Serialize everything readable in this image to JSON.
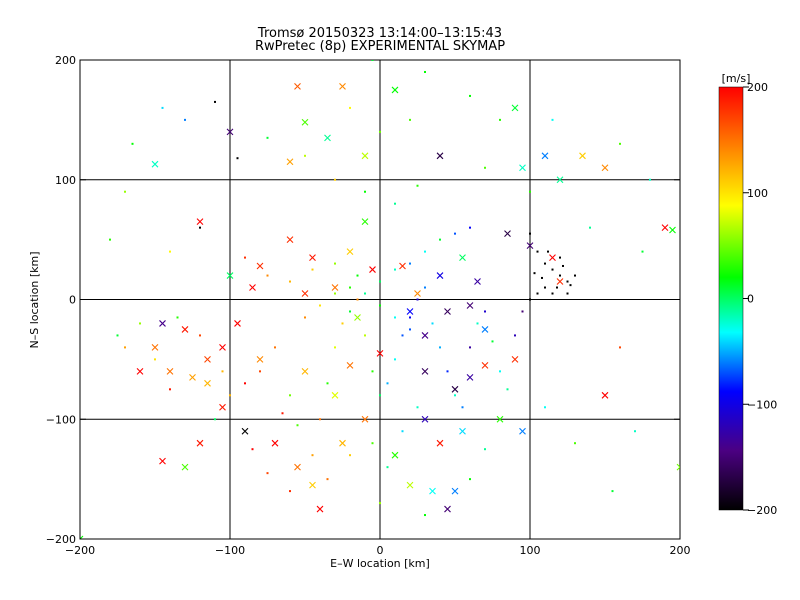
{
  "chart_data": {
    "type": "scatter",
    "title": "Tromsø 20150323 13:14:00–13:15:43",
    "subtitle": "RwPretec (8p) EXPERIMENTAL SKYMAP",
    "xlabel": "E–W location [km]",
    "ylabel": "N–S location [km]",
    "xlim": [
      -200,
      200
    ],
    "ylim": [
      -200,
      200
    ],
    "xticks": [
      -200,
      -100,
      0,
      100,
      200
    ],
    "yticks": [
      -200,
      -100,
      0,
      100,
      200
    ],
    "grid": true,
    "colorbar": {
      "label": "[m/s]",
      "range": [
        -200,
        200
      ],
      "ticks": [
        200,
        100,
        0,
        -100,
        -200
      ],
      "colormap": "rainbow",
      "stops": [
        "#000000",
        "#4b0082",
        "#0000ff",
        "#00ffff",
        "#00ff00",
        "#ffff00",
        "#ff8000",
        "#ff0000"
      ]
    },
    "series": [
      {
        "marker": "cross",
        "points": [
          [
            -60,
            115,
            130
          ],
          [
            -50,
            148,
            40
          ],
          [
            -35,
            135,
            -10
          ],
          [
            -25,
            178,
            140
          ],
          [
            -10,
            120,
            70
          ],
          [
            -150,
            113,
            -20
          ],
          [
            -100,
            140,
            -150
          ],
          [
            10,
            175,
            20
          ],
          [
            40,
            120,
            -170
          ],
          [
            90,
            160,
            10
          ],
          [
            95,
            110,
            -20
          ],
          [
            110,
            120,
            -60
          ],
          [
            120,
            100,
            -10
          ],
          [
            135,
            120,
            110
          ],
          [
            150,
            110,
            140
          ],
          [
            -55,
            178,
            160
          ],
          [
            -120,
            65,
            200
          ],
          [
            -100,
            20,
            0
          ],
          [
            -85,
            10,
            200
          ],
          [
            -80,
            28,
            180
          ],
          [
            -60,
            50,
            180
          ],
          [
            -45,
            35,
            190
          ],
          [
            -30,
            10,
            150
          ],
          [
            -20,
            40,
            110
          ],
          [
            -5,
            25,
            200
          ],
          [
            15,
            28,
            180
          ],
          [
            25,
            5,
            140
          ],
          [
            40,
            20,
            -100
          ],
          [
            55,
            35,
            0
          ],
          [
            65,
            15,
            -130
          ],
          [
            45,
            -10,
            -160
          ],
          [
            85,
            55,
            -170
          ],
          [
            100,
            45,
            -150
          ],
          [
            115,
            35,
            200
          ],
          [
            120,
            15,
            180
          ],
          [
            190,
            60,
            200
          ],
          [
            195,
            58,
            20
          ],
          [
            -145,
            -20,
            -140
          ],
          [
            -150,
            -40,
            150
          ],
          [
            -130,
            -25,
            190
          ],
          [
            -115,
            -50,
            170
          ],
          [
            -105,
            -40,
            200
          ],
          [
            -95,
            -20,
            200
          ],
          [
            -125,
            -65,
            130
          ],
          [
            -115,
            -70,
            120
          ],
          [
            -105,
            -90,
            190
          ],
          [
            -160,
            -60,
            200
          ],
          [
            -140,
            -60,
            150
          ],
          [
            -120,
            -120,
            190
          ],
          [
            -145,
            -135,
            200
          ],
          [
            -130,
            -140,
            40
          ],
          [
            -90,
            -110,
            -200
          ],
          [
            -70,
            -120,
            200
          ],
          [
            -55,
            -140,
            150
          ],
          [
            -45,
            -155,
            110
          ],
          [
            -40,
            -175,
            200
          ],
          [
            -25,
            -120,
            120
          ],
          [
            -10,
            -100,
            150
          ],
          [
            10,
            -130,
            30
          ],
          [
            20,
            -155,
            70
          ],
          [
            35,
            -160,
            -30
          ],
          [
            45,
            -175,
            -150
          ],
          [
            50,
            -160,
            -60
          ],
          [
            40,
            -120,
            190
          ],
          [
            30,
            -100,
            -120
          ],
          [
            55,
            -110,
            -40
          ],
          [
            80,
            -100,
            30
          ],
          [
            95,
            -110,
            -60
          ],
          [
            60,
            -65,
            -130
          ],
          [
            70,
            -55,
            180
          ],
          [
            50,
            -75,
            -170
          ],
          [
            30,
            -60,
            -160
          ],
          [
            -30,
            -80,
            80
          ],
          [
            -50,
            -60,
            120
          ],
          [
            -80,
            -50,
            140
          ],
          [
            -20,
            -55,
            150
          ],
          [
            0,
            -45,
            200
          ],
          [
            30,
            -30,
            -140
          ],
          [
            70,
            -25,
            -60
          ],
          [
            90,
            -50,
            180
          ],
          [
            150,
            -80,
            200
          ],
          [
            200,
            -140,
            50
          ],
          [
            -200,
            -200,
            20
          ],
          [
            -50,
            5,
            180
          ],
          [
            -15,
            -15,
            60
          ],
          [
            20,
            -10,
            -90
          ],
          [
            60,
            -5,
            -150
          ],
          [
            -10,
            65,
            30
          ]
        ]
      },
      {
        "marker": "dot",
        "points": [
          [
            -110,
            165,
            -200
          ],
          [
            -95,
            118,
            -200
          ],
          [
            -120,
            60,
            -200
          ],
          [
            100,
            55,
            -200
          ],
          [
            105,
            40,
            -200
          ],
          [
            110,
            30,
            -200
          ],
          [
            115,
            25,
            -200
          ],
          [
            120,
            20,
            -200
          ],
          [
            125,
            15,
            -200
          ],
          [
            110,
            10,
            -200
          ],
          [
            105,
            5,
            -200
          ],
          [
            115,
            5,
            -200
          ],
          [
            125,
            5,
            -200
          ],
          [
            120,
            35,
            -200
          ],
          [
            130,
            20,
            -200
          ],
          [
            100,
            0,
            -200
          ],
          [
            108,
            18,
            -200
          ],
          [
            118,
            10,
            -200
          ],
          [
            112,
            40,
            -200
          ],
          [
            122,
            28,
            -200
          ],
          [
            127,
            12,
            -200
          ],
          [
            103,
            22,
            -200
          ],
          [
            -160,
            -20,
            60
          ],
          [
            -175,
            -30,
            10
          ],
          [
            -170,
            -40,
            130
          ],
          [
            -140,
            -75,
            190
          ],
          [
            -110,
            -100,
            0
          ],
          [
            -100,
            -80,
            120
          ],
          [
            -90,
            -70,
            200
          ],
          [
            -80,
            -60,
            170
          ],
          [
            -70,
            -40,
            150
          ],
          [
            -65,
            -95,
            190
          ],
          [
            -60,
            -80,
            50
          ],
          [
            -55,
            -105,
            40
          ],
          [
            -40,
            -100,
            150
          ],
          [
            -35,
            -70,
            30
          ],
          [
            -30,
            -40,
            80
          ],
          [
            -25,
            -20,
            110
          ],
          [
            -20,
            -10,
            10
          ],
          [
            -15,
            0,
            140
          ],
          [
            -10,
            -30,
            70
          ],
          [
            -5,
            -60,
            30
          ],
          [
            0,
            -80,
            0
          ],
          [
            5,
            -70,
            -50
          ],
          [
            10,
            -50,
            -30
          ],
          [
            15,
            -30,
            -70
          ],
          [
            20,
            -15,
            -90
          ],
          [
            25,
            0,
            -110
          ],
          [
            30,
            10,
            -60
          ],
          [
            35,
            -20,
            -40
          ],
          [
            40,
            -40,
            -50
          ],
          [
            45,
            -60,
            -80
          ],
          [
            50,
            -80,
            -20
          ],
          [
            55,
            -90,
            -60
          ],
          [
            60,
            -40,
            -130
          ],
          [
            65,
            -20,
            -20
          ],
          [
            70,
            -10,
            -110
          ],
          [
            75,
            -35,
            10
          ],
          [
            80,
            -60,
            -30
          ],
          [
            85,
            -75,
            -10
          ],
          [
            90,
            -30,
            -120
          ],
          [
            95,
            -10,
            -150
          ],
          [
            -90,
            35,
            180
          ],
          [
            -75,
            20,
            140
          ],
          [
            -60,
            15,
            120
          ],
          [
            -45,
            25,
            110
          ],
          [
            -30,
            30,
            60
          ],
          [
            -15,
            20,
            20
          ],
          [
            0,
            15,
            0
          ],
          [
            10,
            25,
            -20
          ],
          [
            20,
            30,
            -60
          ],
          [
            30,
            40,
            -30
          ],
          [
            40,
            50,
            10
          ],
          [
            50,
            55,
            -70
          ],
          [
            60,
            60,
            -90
          ],
          [
            -50,
            -15,
            140
          ],
          [
            -40,
            -5,
            100
          ],
          [
            -30,
            5,
            60
          ],
          [
            -20,
            10,
            30
          ],
          [
            -10,
            5,
            -10
          ],
          [
            0,
            -5,
            20
          ],
          [
            10,
            -15,
            -30
          ],
          [
            20,
            -25,
            -70
          ],
          [
            -5,
            -120,
            40
          ],
          [
            5,
            -140,
            -10
          ],
          [
            15,
            -110,
            -40
          ],
          [
            25,
            -90,
            -20
          ],
          [
            -20,
            -130,
            110
          ],
          [
            -35,
            -150,
            150
          ],
          [
            -60,
            -160,
            180
          ],
          [
            0,
            -170,
            60
          ],
          [
            30,
            -180,
            20
          ],
          [
            -150,
            -50,
            100
          ],
          [
            -135,
            -15,
            30
          ],
          [
            -120,
            -30,
            170
          ],
          [
            -105,
            -60,
            120
          ],
          [
            -85,
            -125,
            200
          ],
          [
            -75,
            -145,
            170
          ],
          [
            -45,
            -130,
            130
          ],
          [
            60,
            -150,
            20
          ],
          [
            70,
            -125,
            -10
          ],
          [
            110,
            -90,
            -30
          ],
          [
            130,
            -120,
            40
          ],
          [
            155,
            -160,
            10
          ],
          [
            170,
            -110,
            -20
          ],
          [
            160,
            -40,
            170
          ],
          [
            175,
            40,
            10
          ],
          [
            140,
            60,
            -10
          ],
          [
            80,
            150,
            30
          ],
          [
            60,
            170,
            20
          ],
          [
            20,
            150,
            40
          ],
          [
            0,
            140,
            50
          ],
          [
            -20,
            160,
            90
          ],
          [
            -50,
            120,
            70
          ],
          [
            -75,
            135,
            10
          ],
          [
            -130,
            150,
            -60
          ],
          [
            -145,
            160,
            -40
          ],
          [
            30,
            190,
            20
          ],
          [
            -5,
            200,
            10
          ],
          [
            70,
            110,
            40
          ],
          [
            100,
            90,
            30
          ],
          [
            115,
            150,
            -30
          ],
          [
            160,
            130,
            40
          ],
          [
            180,
            100,
            -20
          ],
          [
            -180,
            50,
            30
          ],
          [
            -170,
            90,
            60
          ],
          [
            -165,
            130,
            20
          ],
          [
            -140,
            40,
            90
          ],
          [
            -10,
            90,
            20
          ],
          [
            10,
            80,
            -10
          ],
          [
            25,
            95,
            30
          ],
          [
            -30,
            100,
            110
          ]
        ]
      }
    ]
  }
}
